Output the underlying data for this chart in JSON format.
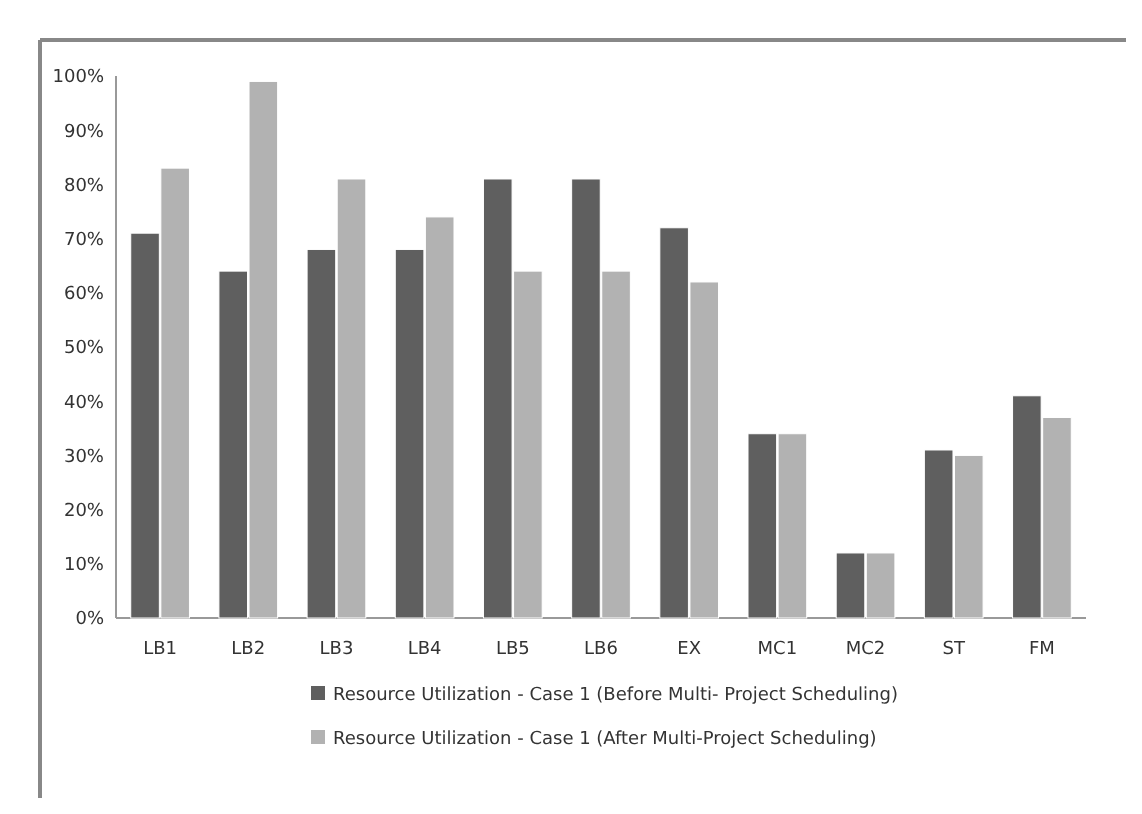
{
  "chart_data": {
    "type": "bar",
    "categories": [
      "LB1",
      "LB2",
      "LB3",
      "LB4",
      "LB5",
      "LB6",
      "EX",
      "MC1",
      "MC2",
      "ST",
      "FM"
    ],
    "series": [
      {
        "name": "Resource Utilization - Case 1 (Before Multi- Project Scheduling)",
        "color": "#5f5f5f",
        "values": [
          71,
          64,
          68,
          68,
          81,
          81,
          72,
          34,
          12,
          31,
          41
        ]
      },
      {
        "name": "Resource Utilization - Case 1 (After Multi-Project Scheduling)",
        "color": "#b2b2b2",
        "values": [
          83,
          99,
          81,
          74,
          64,
          64,
          62,
          34,
          12,
          30,
          37
        ]
      }
    ],
    "ylim": [
      0,
      100
    ],
    "yticks": [
      {
        "value": 0,
        "label": "0%"
      },
      {
        "value": 10,
        "label": "10%"
      },
      {
        "value": 20,
        "label": "20%"
      },
      {
        "value": 30,
        "label": "30%"
      },
      {
        "value": 40,
        "label": "40%"
      },
      {
        "value": 50,
        "label": "50%"
      },
      {
        "value": 60,
        "label": "60%"
      },
      {
        "value": 70,
        "label": "70%"
      },
      {
        "value": 80,
        "label": "80%"
      },
      {
        "value": 90,
        "label": "90%"
      },
      {
        "value": 100,
        "label": "100%"
      }
    ],
    "grid": false,
    "legend": "bottom"
  }
}
